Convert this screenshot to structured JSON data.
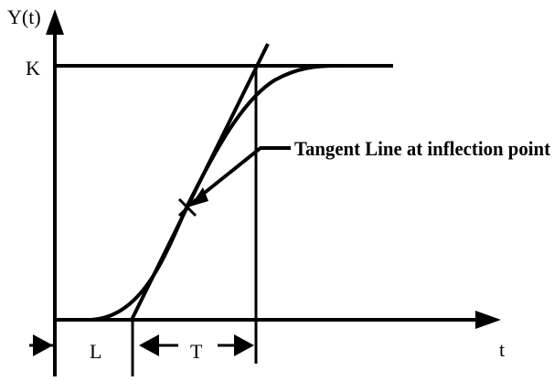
{
  "diagram": {
    "y_axis_label": "Y(t)",
    "k_label": "K",
    "tangent_label": "Tangent Line at inflection point",
    "l_label": "L",
    "t_interval_label": "T",
    "x_axis_label": "t"
  }
}
